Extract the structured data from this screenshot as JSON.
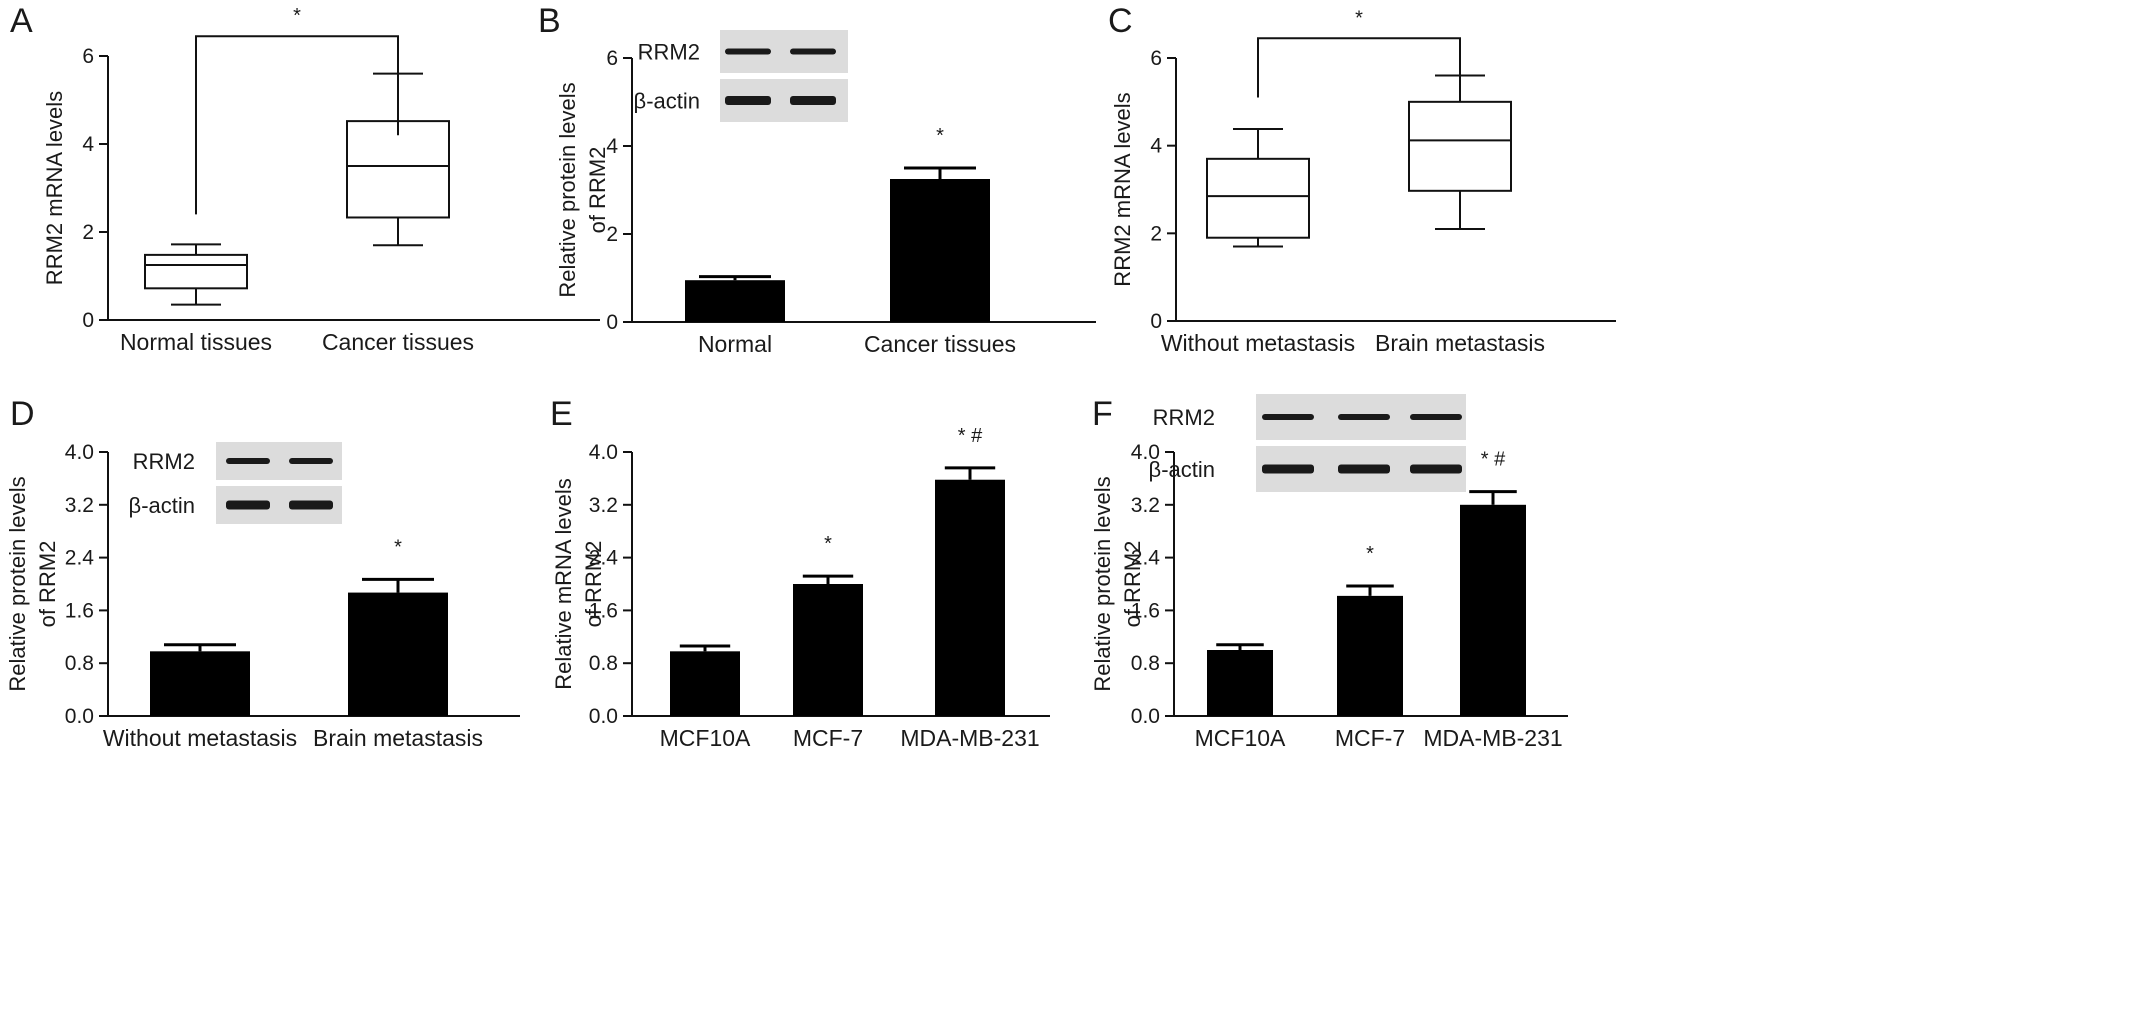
{
  "chart_data": [
    {
      "panel": "A",
      "type": "box",
      "ylabel": "RRM2 mRNA levels",
      "ylim": [
        0,
        6
      ],
      "yticks": [
        "0",
        "2",
        "4",
        "6"
      ],
      "categories": [
        "Normal tissues",
        "Cancer tissues"
      ],
      "boxes": [
        {
          "min": 0.35,
          "q1": 0.72,
          "median": 1.25,
          "q3": 1.48,
          "max": 1.72
        },
        {
          "min": 1.7,
          "q1": 2.33,
          "median": 3.5,
          "q3": 4.52,
          "max": 5.6
        }
      ],
      "bracket": {
        "from": 0,
        "to": 1,
        "label": "*",
        "start_y": [
          2.4,
          4.2
        ],
        "top_y": 6.45
      }
    },
    {
      "panel": "B",
      "type": "bar",
      "ylabel": [
        "Relative protein levels",
        "of RRM2"
      ],
      "ylim": [
        0,
        6
      ],
      "yticks": [
        "0",
        "2",
        "4",
        "6"
      ],
      "categories": [
        "Normal",
        "Cancer tissues"
      ],
      "values": [
        0.95,
        3.25
      ],
      "errors": [
        0.08,
        0.25
      ],
      "sig": [
        "",
        "*"
      ],
      "blot_labels": [
        "RRM2",
        "β-actin"
      ]
    },
    {
      "panel": "C",
      "type": "box",
      "ylabel": "RRM2 mRNA levels",
      "ylim": [
        0,
        6
      ],
      "yticks": [
        "0",
        "2",
        "4",
        "6"
      ],
      "categories": [
        "Without metastasis",
        "Brain metastasis"
      ],
      "boxes": [
        {
          "min": 1.7,
          "q1": 1.9,
          "median": 2.85,
          "q3": 3.7,
          "max": 4.38
        },
        {
          "min": 2.1,
          "q1": 2.97,
          "median": 4.12,
          "q3": 5.0,
          "max": 5.6
        }
      ],
      "bracket": {
        "from": 0,
        "to": 1,
        "label": "*",
        "start_y": [
          5.1,
          5.4
        ],
        "top_y": 6.45
      }
    },
    {
      "panel": "D",
      "type": "bar",
      "ylabel": [
        "Relative protein levels",
        "of RRM2"
      ],
      "ylim": [
        0,
        4
      ],
      "yticks": [
        "0.0",
        "0.8",
        "1.6",
        "2.4",
        "3.2",
        "4.0"
      ],
      "categories": [
        "Without metastasis",
        "Brain metastasis"
      ],
      "values": [
        0.98,
        1.87
      ],
      "errors": [
        0.1,
        0.2
      ],
      "sig": [
        "",
        "*"
      ],
      "blot_labels": [
        "RRM2",
        "β-actin"
      ]
    },
    {
      "panel": "E",
      "type": "bar",
      "ylabel": [
        "Relative mRNA levels",
        "of RRM2"
      ],
      "ylim": [
        0,
        4
      ],
      "yticks": [
        "0.0",
        "0.8",
        "1.6",
        "2.4",
        "3.2",
        "4.0"
      ],
      "categories": [
        "MCF10A",
        "MCF-7",
        "MDA-MB-231"
      ],
      "values": [
        0.98,
        2.0,
        3.58
      ],
      "errors": [
        0.08,
        0.12,
        0.18
      ],
      "sig": [
        "",
        "*",
        "* #"
      ]
    },
    {
      "panel": "F",
      "type": "bar",
      "ylabel": [
        "Relative protein levels",
        "of RRM2"
      ],
      "ylim": [
        0,
        4
      ],
      "yticks": [
        "0.0",
        "0.8",
        "1.6",
        "2.4",
        "3.2",
        "4.0"
      ],
      "categories": [
        "MCF10A",
        "MCF-7",
        "MDA-MB-231"
      ],
      "values": [
        1.0,
        1.82,
        3.2
      ],
      "errors": [
        0.08,
        0.15,
        0.2
      ],
      "sig": [
        "",
        "*",
        "* #"
      ],
      "blot_labels": [
        "RRM2",
        "β-actin"
      ]
    }
  ],
  "colors": {
    "bar": "#000000",
    "axis": "#111111",
    "blot_bg": "#dcdcdc",
    "band": "#1a1a1a"
  }
}
